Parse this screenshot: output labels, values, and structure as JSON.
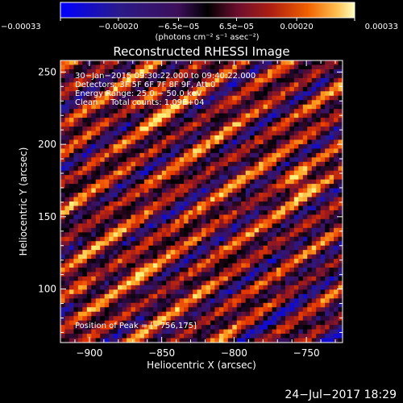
{
  "chart_data": {
    "type": "heatmap",
    "title": "Reconstructed RHESSI Image",
    "xlabel": "Heliocentric X (arcsec)",
    "ylabel": "Heliocentric Y (arcsec)",
    "xlim": [
      -920,
      -725
    ],
    "ylim": [
      63,
      258
    ],
    "xticks": [
      -900,
      -850,
      -800,
      -750
    ],
    "xtick_labels": [
      "−900",
      "−850",
      "−800",
      "−750"
    ],
    "yticks": [
      100,
      150,
      200,
      250
    ],
    "ytick_labels": [
      "100",
      "150",
      "200",
      "250"
    ],
    "colorbar": {
      "range": [
        -0.00033,
        0.00033
      ],
      "ticks": [
        -0.00033,
        -0.0002,
        -6.5e-05,
        6.5e-05,
        0.0002,
        0.00033
      ],
      "tick_labels": [
        "−0.00033",
        "−0.00020",
        "−6.5e−05",
        "6.5e−05",
        "0.00020",
        "0.00033"
      ],
      "unit_label": "(photons cm⁻² s⁻¹ asec⁻²)"
    },
    "annotations": [
      "30−Jan−2015 09:30:22.000 to 09:40:22.000",
      "Detectors: 3F 5F 6F 7F 8F 9F, Att 0",
      "Energy Range: 25.0 − 50.0 keV",
      "Clean     Total counts: 1.09E+04"
    ],
    "peak_label": "Position of Peak = [−756,175]",
    "peak": {
      "x": -756,
      "y": 175
    },
    "colormap": [
      "#0000ff",
      "#2a1a8a",
      "#3d0f5a",
      "#000000",
      "#5a0f3c",
      "#a01a1a",
      "#e83a00",
      "#ffa020",
      "#ffff90"
    ],
    "grid": false
  },
  "footer": {
    "date": "24−Jul−2017 18:29"
  }
}
